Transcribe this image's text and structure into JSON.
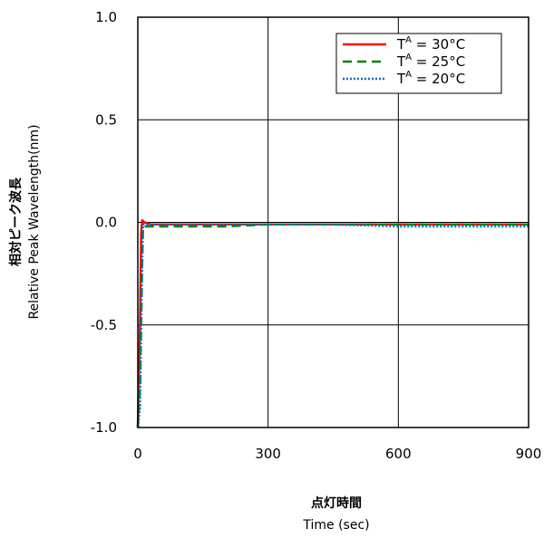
{
  "chart_data": {
    "type": "line",
    "xlabel_ja": "点灯時間",
    "xlabel": "Time (sec)",
    "ylabel_ja": "相対ピーク波長",
    "ylabel": "Relative Peak Wavelength(nm)",
    "xlim": [
      0,
      900
    ],
    "ylim": [
      -1.0,
      1.0
    ],
    "x_ticks": [
      "0",
      "300",
      "600",
      "900"
    ],
    "y_ticks": [
      "1.0",
      "0.5",
      "0.0",
      "-0.5",
      "-1.0"
    ],
    "grid": true,
    "legend_position": "top-right",
    "series": [
      {
        "name": "T",
        "sub": "A",
        "suffix": " = 30°C",
        "color": "#ff0000",
        "style": "solid",
        "x": [
          0,
          5,
          8,
          10,
          15,
          30,
          60,
          100,
          200,
          300,
          450,
          600,
          750,
          900
        ],
        "y": [
          -1.0,
          -0.5,
          -0.05,
          0.01,
          0.0,
          -0.01,
          -0.01,
          -0.01,
          -0.01,
          -0.01,
          -0.01,
          -0.01,
          -0.01,
          -0.01
        ]
      },
      {
        "name": "T",
        "sub": "A",
        "suffix": " = 25°C",
        "color": "#008000",
        "style": "dashed",
        "x": [
          0,
          5,
          10,
          12,
          20,
          50,
          100,
          200,
          300,
          450,
          600,
          750,
          900
        ],
        "y": [
          -1.0,
          -0.8,
          -0.2,
          -0.02,
          -0.02,
          -0.02,
          -0.02,
          -0.02,
          -0.01,
          -0.01,
          -0.01,
          -0.01,
          -0.01
        ]
      },
      {
        "name": "T",
        "sub": "A",
        "suffix": " = 20°C",
        "color": "#0070c0",
        "style": "dotted",
        "x": [
          0,
          5,
          10,
          12,
          20,
          50,
          100,
          200,
          300,
          450,
          600,
          750,
          900
        ],
        "y": [
          -1.0,
          -0.9,
          -0.2,
          -0.01,
          -0.01,
          -0.01,
          -0.01,
          -0.01,
          -0.01,
          -0.01,
          -0.02,
          -0.02,
          -0.02
        ]
      }
    ]
  }
}
